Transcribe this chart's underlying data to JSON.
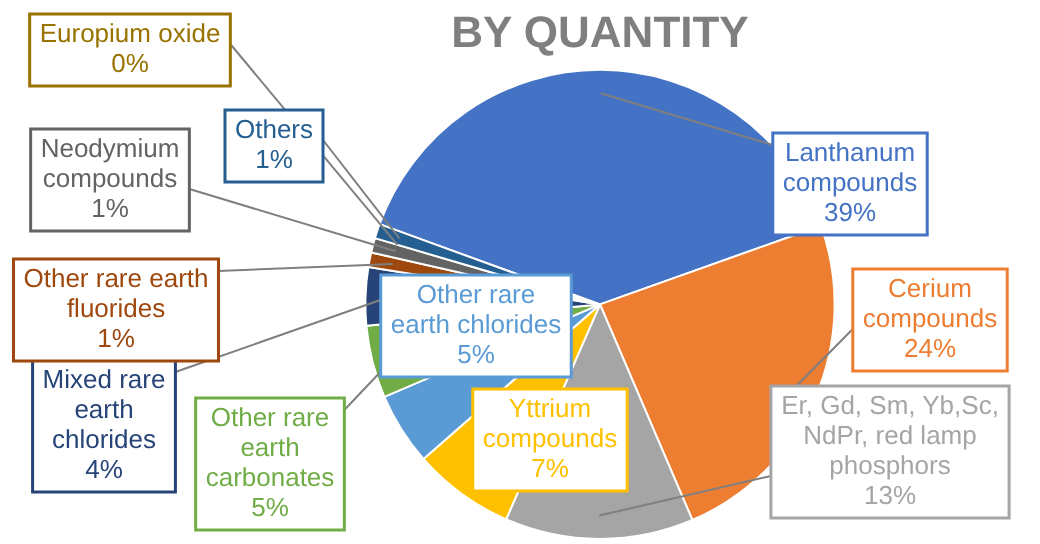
{
  "chart_data": {
    "type": "pie",
    "title": "BY QUANTITY",
    "categories": [
      "Lanthanum compounds",
      "Cerium compounds",
      "Er, Gd, Sm, Yb,Sc, NdPr, red lamp phosphors",
      "Yttrium compounds",
      "Other rare earth chlorides",
      "Other rare earth carbonates",
      "Mixed rare earth chlorides",
      "Other rare earth fluorides",
      "Neodymium compounds",
      "Europium oxide",
      "Others"
    ],
    "values": [
      39,
      24,
      13,
      7,
      5,
      5,
      4,
      1,
      1,
      0,
      1
    ],
    "value_labels": [
      "39%",
      "24%",
      "13%",
      "7%",
      "5%",
      "5%",
      "4%",
      "1%",
      "1%",
      "0%",
      "1%"
    ],
    "colors": [
      "#4472c4",
      "#ed7d31",
      "#a5a5a5",
      "#ffc000",
      "#5b9bd5",
      "#70ad47",
      "#264478",
      "#9e480e",
      "#636363",
      "#997300",
      "#255e91"
    ],
    "legend": false
  }
}
